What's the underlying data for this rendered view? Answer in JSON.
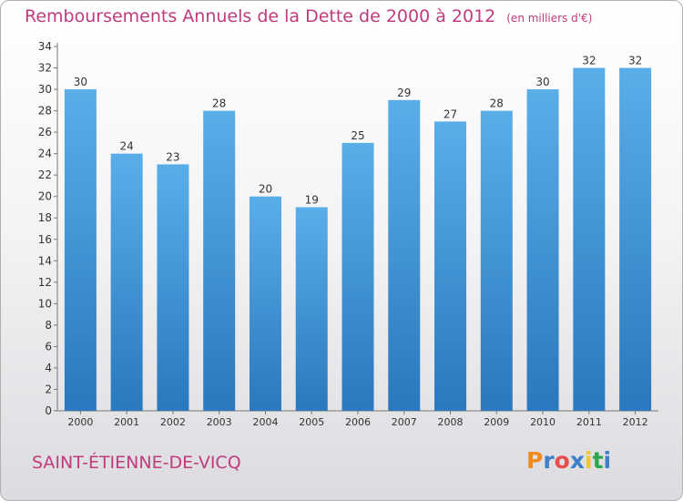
{
  "title": "Remboursements Annuels de la Dette de 2000 à 2012",
  "unit": "(en milliers d'€)",
  "city": "SAINT-ÉTIENNE-DE-VICQ",
  "logo": {
    "letters": [
      "P",
      "r",
      "o",
      "x",
      "i",
      "t",
      "i"
    ],
    "colors": [
      "#f08a1c",
      "#3d7fc9",
      "#e84d4d",
      "#3d7fc9",
      "#f2c81b",
      "#2aa84a",
      "#3d7fc9"
    ]
  },
  "colors": {
    "bar": "#3d8fd6",
    "bar_light": "#5aaee8",
    "title": "#c13a7d",
    "grid": "#9a9a9a"
  },
  "chart_data": {
    "type": "bar",
    "title": "Remboursements Annuels de la Dette de 2000 à 2012",
    "subtitle": "(en milliers d'€)",
    "categories": [
      "2000",
      "2001",
      "2002",
      "2003",
      "2004",
      "2005",
      "2006",
      "2007",
      "2008",
      "2009",
      "2010",
      "2011",
      "2012"
    ],
    "values": [
      30,
      24,
      23,
      28,
      20,
      19,
      25,
      29,
      27,
      28,
      30,
      32,
      32
    ],
    "xlabel": "",
    "ylabel": "",
    "ylim": [
      0,
      34
    ],
    "yticks": [
      0,
      2,
      4,
      6,
      8,
      10,
      12,
      14,
      16,
      18,
      20,
      22,
      24,
      26,
      28,
      30,
      32,
      34
    ],
    "grid": false,
    "data_labels": true
  }
}
